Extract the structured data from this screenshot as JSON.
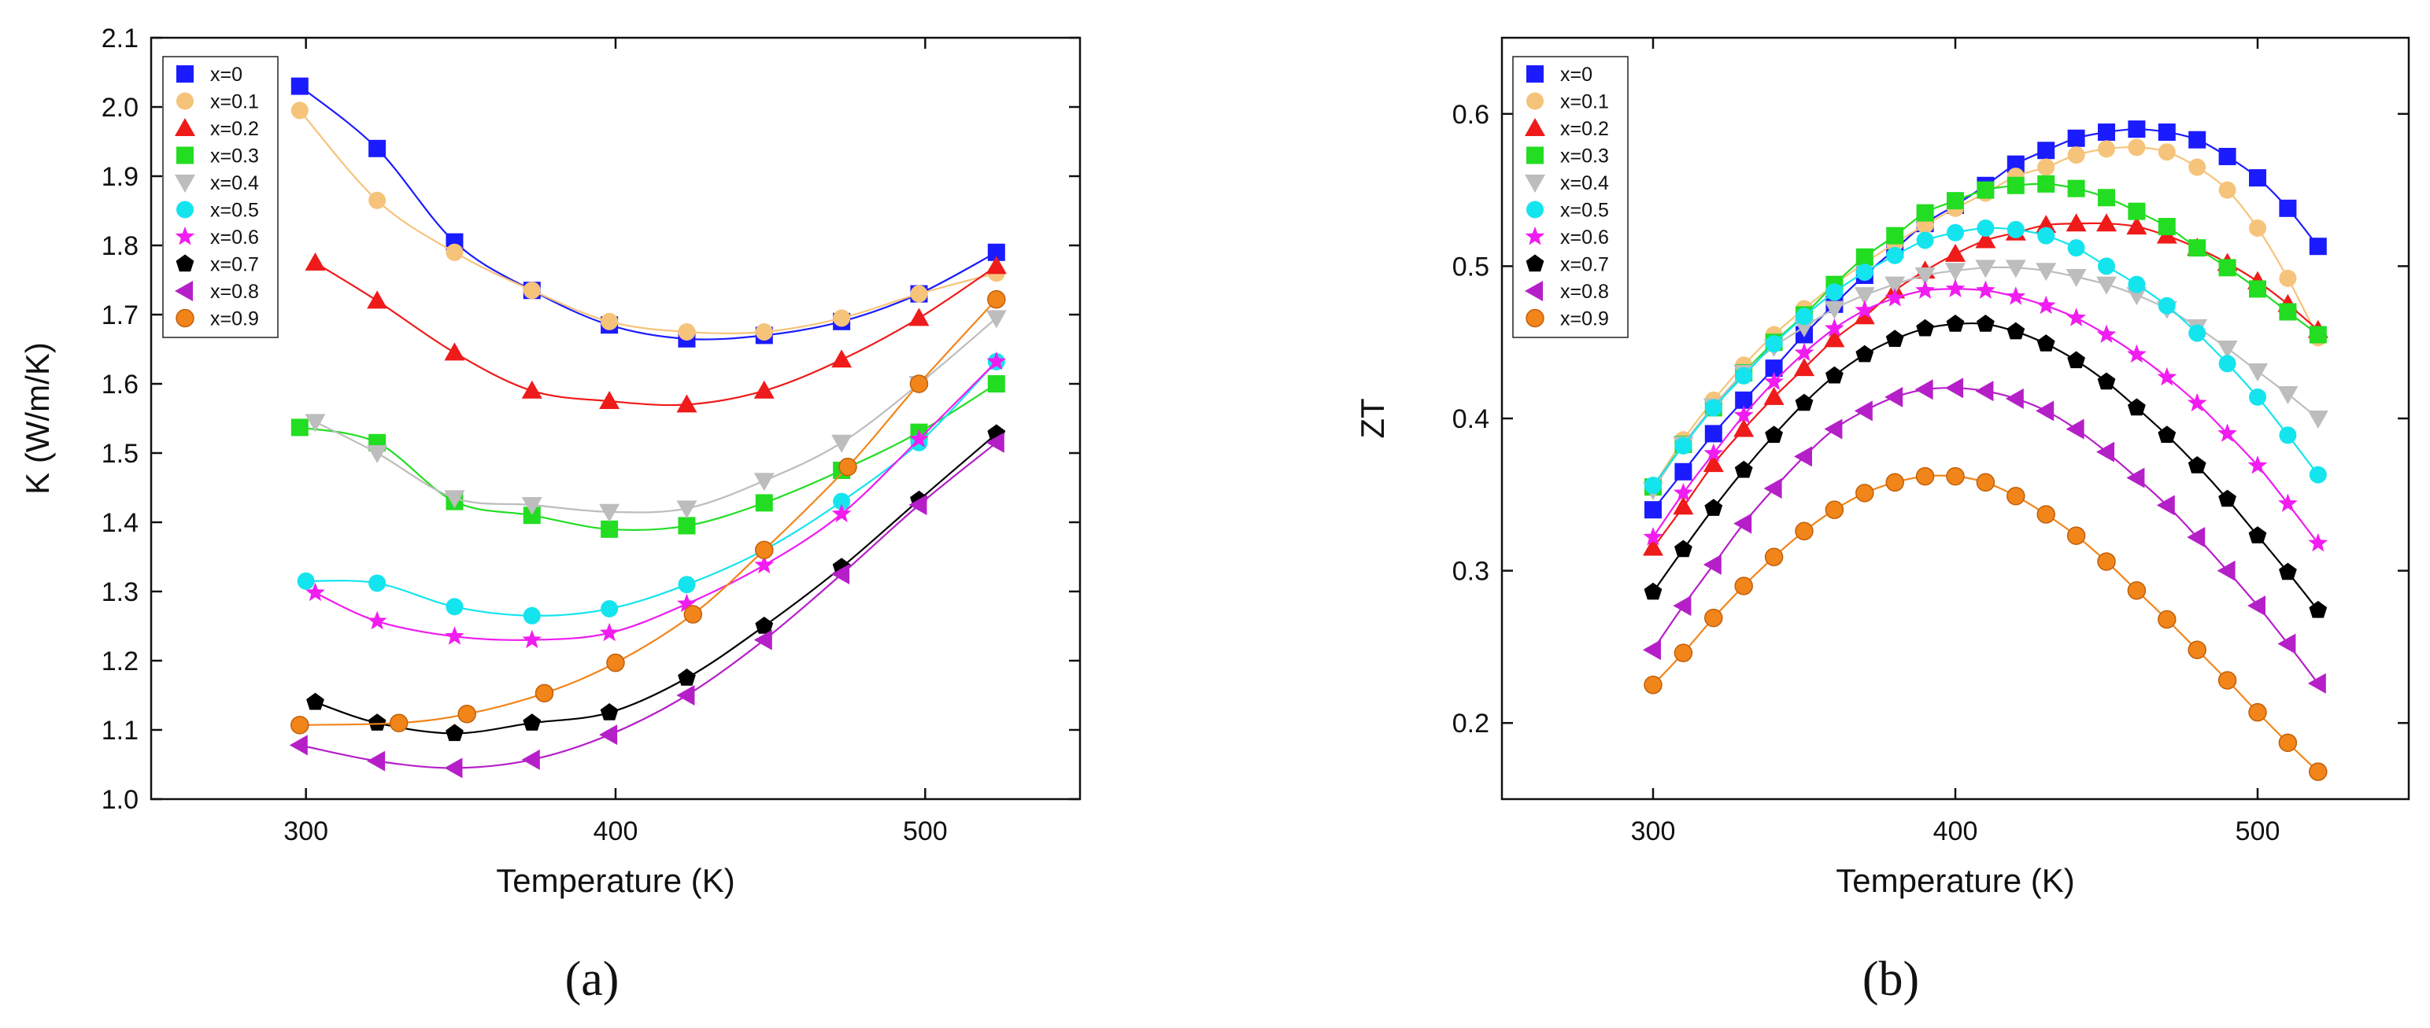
{
  "chart_data": [
    {
      "type": "scatter-line",
      "panel": "a",
      "caption": "(a)",
      "xlabel": "Temperature (K)",
      "ylabel": "K (W/m/K)",
      "xlim": [
        250,
        550
      ],
      "ylim": [
        1.0,
        2.1
      ],
      "xticks": [
        300,
        400,
        500
      ],
      "xtick_labels": [
        "300",
        "400",
        "500"
      ],
      "yticks": [
        1.0,
        1.1,
        1.2,
        1.3,
        1.4,
        1.5,
        1.6,
        1.7,
        1.8,
        1.9,
        2.0,
        2.1
      ],
      "ytick_labels": [
        "1.0",
        "1.1",
        "1.2",
        "1.3",
        "1.4",
        "1.5",
        "1.6",
        "1.7",
        "1.8",
        "1.9",
        "2.0",
        "2.1"
      ],
      "legend_position": "top-left",
      "series": [
        {
          "name": "x=0",
          "color": "#1b1bff",
          "marker": "square",
          "x": [
            298,
            323,
            348,
            373,
            398,
            423,
            448,
            473,
            498,
            523
          ],
          "y": [
            2.03,
            1.94,
            1.805,
            1.735,
            1.685,
            1.665,
            1.67,
            1.69,
            1.73,
            1.79
          ]
        },
        {
          "name": "x=0.1",
          "color": "#f6c37a",
          "marker": "circle",
          "x": [
            298,
            323,
            348,
            373,
            398,
            423,
            448,
            473,
            498,
            523
          ],
          "y": [
            1.995,
            1.865,
            1.79,
            1.735,
            1.69,
            1.675,
            1.675,
            1.695,
            1.73,
            1.76
          ]
        },
        {
          "name": "x=0.2",
          "color": "#ef1a1a",
          "marker": "triangle-up",
          "x": [
            303,
            323,
            348,
            373,
            398,
            423,
            448,
            473,
            498,
            523
          ],
          "y": [
            1.775,
            1.72,
            1.645,
            1.59,
            1.575,
            1.57,
            1.59,
            1.635,
            1.695,
            1.77
          ]
        },
        {
          "name": "x=0.3",
          "color": "#22dd22",
          "marker": "square",
          "x": [
            298,
            323,
            348,
            373,
            398,
            423,
            448,
            473,
            498,
            523
          ],
          "y": [
            1.537,
            1.515,
            1.43,
            1.41,
            1.39,
            1.395,
            1.428,
            1.475,
            1.53,
            1.6
          ]
        },
        {
          "name": "x=0.4",
          "color": "#bdbdbd",
          "marker": "triangle-down",
          "x": [
            303,
            323,
            348,
            373,
            398,
            423,
            448,
            473,
            498,
            523
          ],
          "y": [
            1.545,
            1.5,
            1.435,
            1.425,
            1.415,
            1.42,
            1.46,
            1.515,
            1.6,
            1.695
          ]
        },
        {
          "name": "x=0.5",
          "color": "#14e4ee",
          "marker": "circle",
          "x": [
            300,
            323,
            348,
            373,
            398,
            423,
            448,
            473,
            498,
            523
          ],
          "y": [
            1.315,
            1.312,
            1.278,
            1.265,
            1.275,
            1.31,
            1.36,
            1.43,
            1.515,
            1.632
          ]
        },
        {
          "name": "x=0.6",
          "color": "#f01cf0",
          "marker": "star",
          "x": [
            303,
            323,
            348,
            373,
            398,
            423,
            448,
            473,
            498,
            523
          ],
          "y": [
            1.298,
            1.257,
            1.235,
            1.23,
            1.24,
            1.282,
            1.338,
            1.412,
            1.52,
            1.632
          ]
        },
        {
          "name": "x=0.7",
          "color": "#000000",
          "marker": "pentagon",
          "x": [
            303,
            323,
            348,
            373,
            398,
            423,
            448,
            473,
            498,
            523
          ],
          "y": [
            1.14,
            1.11,
            1.095,
            1.11,
            1.125,
            1.175,
            1.25,
            1.335,
            1.432,
            1.528
          ]
        },
        {
          "name": "x=0.8",
          "color": "#b51fc8",
          "marker": "triangle-left",
          "x": [
            298,
            323,
            348,
            373,
            398,
            423,
            448,
            473,
            498,
            523
          ],
          "y": [
            1.078,
            1.055,
            1.045,
            1.057,
            1.093,
            1.15,
            1.23,
            1.325,
            1.425,
            1.515
          ]
        },
        {
          "name": "x=0.9",
          "color": "#f2851a",
          "marker": "ball",
          "x": [
            298,
            330,
            352,
            377,
            400,
            425,
            448,
            475,
            498,
            523
          ],
          "y": [
            1.107,
            1.11,
            1.123,
            1.153,
            1.197,
            1.267,
            1.36,
            1.48,
            1.6,
            1.722
          ]
        }
      ]
    },
    {
      "type": "scatter-line",
      "panel": "b",
      "caption": "(b)",
      "xlabel": "Temperature (K)",
      "ylabel": "ZT",
      "xlim": [
        250,
        550
      ],
      "ylim": [
        0.15,
        0.65
      ],
      "xticks": [
        300,
        400,
        500
      ],
      "xtick_labels": [
        "300",
        "400",
        "500"
      ],
      "yticks": [
        0.2,
        0.3,
        0.4,
        0.5,
        0.6
      ],
      "ytick_labels": [
        "0.2",
        "0.3",
        "0.4",
        "0.5",
        "0.6"
      ],
      "legend_position": "top-left",
      "series": [
        {
          "name": "x=0",
          "color": "#1b1bff",
          "marker": "square",
          "x": [
            300,
            310,
            320,
            330,
            340,
            350,
            360,
            370,
            380,
            390,
            400,
            410,
            420,
            430,
            440,
            450,
            460,
            470,
            480,
            490,
            500,
            510,
            520
          ],
          "y": [
            0.34,
            0.365,
            0.39,
            0.412,
            0.433,
            0.455,
            0.475,
            0.494,
            0.511,
            0.528,
            0.54,
            0.553,
            0.567,
            0.576,
            0.584,
            0.588,
            0.59,
            0.588,
            0.583,
            0.572,
            0.558,
            0.538,
            0.513
          ]
        },
        {
          "name": "x=0.1",
          "color": "#f6c37a",
          "marker": "circle",
          "x": [
            300,
            310,
            320,
            330,
            340,
            350,
            360,
            370,
            380,
            390,
            400,
            410,
            420,
            430,
            440,
            450,
            460,
            470,
            480,
            490,
            500,
            510,
            520
          ],
          "y": [
            0.355,
            0.386,
            0.412,
            0.435,
            0.455,
            0.472,
            0.488,
            0.502,
            0.515,
            0.527,
            0.538,
            0.548,
            0.559,
            0.565,
            0.573,
            0.577,
            0.578,
            0.575,
            0.565,
            0.55,
            0.525,
            0.492,
            0.453
          ]
        },
        {
          "name": "x=0.2",
          "color": "#ef1a1a",
          "marker": "triangle-up",
          "x": [
            300,
            310,
            320,
            330,
            340,
            350,
            360,
            370,
            380,
            390,
            400,
            410,
            420,
            430,
            440,
            450,
            460,
            470,
            480,
            490,
            500,
            510,
            520
          ],
          "y": [
            0.315,
            0.342,
            0.37,
            0.393,
            0.414,
            0.433,
            0.452,
            0.467,
            0.484,
            0.497,
            0.508,
            0.517,
            0.522,
            0.527,
            0.528,
            0.528,
            0.526,
            0.52,
            0.512,
            0.502,
            0.49,
            0.475,
            0.458
          ]
        },
        {
          "name": "x=0.3",
          "color": "#22dd22",
          "marker": "square",
          "x": [
            300,
            310,
            320,
            330,
            340,
            350,
            360,
            370,
            380,
            390,
            400,
            410,
            420,
            430,
            440,
            450,
            460,
            470,
            480,
            490,
            500,
            510,
            520
          ],
          "y": [
            0.355,
            0.383,
            0.407,
            0.43,
            0.45,
            0.468,
            0.488,
            0.506,
            0.52,
            0.535,
            0.543,
            0.55,
            0.553,
            0.554,
            0.551,
            0.545,
            0.536,
            0.526,
            0.512,
            0.499,
            0.485,
            0.47,
            0.455
          ]
        },
        {
          "name": "x=0.4",
          "color": "#bdbdbd",
          "marker": "triangle-down",
          "x": [
            300,
            310,
            320,
            330,
            340,
            350,
            360,
            370,
            380,
            390,
            400,
            410,
            420,
            430,
            440,
            450,
            460,
            470,
            480,
            490,
            500,
            510,
            520
          ],
          "y": [
            0.353,
            0.383,
            0.408,
            0.43,
            0.447,
            0.46,
            0.472,
            0.481,
            0.488,
            0.494,
            0.497,
            0.499,
            0.499,
            0.497,
            0.493,
            0.488,
            0.481,
            0.472,
            0.46,
            0.446,
            0.431,
            0.416,
            0.4
          ]
        },
        {
          "name": "x=0.5",
          "color": "#14e4ee",
          "marker": "circle",
          "x": [
            300,
            310,
            320,
            330,
            340,
            350,
            360,
            370,
            380,
            390,
            400,
            410,
            420,
            430,
            440,
            450,
            460,
            470,
            480,
            490,
            500,
            510,
            520
          ],
          "y": [
            0.356,
            0.382,
            0.407,
            0.428,
            0.449,
            0.467,
            0.483,
            0.496,
            0.507,
            0.517,
            0.522,
            0.525,
            0.524,
            0.52,
            0.512,
            0.5,
            0.488,
            0.474,
            0.456,
            0.436,
            0.414,
            0.389,
            0.363
          ]
        },
        {
          "name": "x=0.6",
          "color": "#f01cf0",
          "marker": "star",
          "x": [
            300,
            310,
            320,
            330,
            340,
            350,
            360,
            370,
            380,
            390,
            400,
            410,
            420,
            430,
            440,
            450,
            460,
            470,
            480,
            490,
            500,
            510,
            520
          ],
          "y": [
            0.322,
            0.351,
            0.377,
            0.402,
            0.424,
            0.443,
            0.459,
            0.471,
            0.479,
            0.484,
            0.485,
            0.484,
            0.48,
            0.474,
            0.466,
            0.455,
            0.442,
            0.427,
            0.41,
            0.39,
            0.369,
            0.344,
            0.318
          ]
        },
        {
          "name": "x=0.7",
          "color": "#000000",
          "marker": "pentagon",
          "x": [
            300,
            310,
            320,
            330,
            340,
            350,
            360,
            370,
            380,
            390,
            400,
            410,
            420,
            430,
            440,
            450,
            460,
            470,
            480,
            490,
            500,
            510,
            520
          ],
          "y": [
            0.286,
            0.314,
            0.341,
            0.366,
            0.389,
            0.41,
            0.428,
            0.442,
            0.452,
            0.459,
            0.462,
            0.462,
            0.457,
            0.449,
            0.438,
            0.424,
            0.407,
            0.389,
            0.369,
            0.347,
            0.323,
            0.299,
            0.274
          ]
        },
        {
          "name": "x=0.8",
          "color": "#b51fc8",
          "marker": "triangle-left",
          "x": [
            300,
            310,
            320,
            330,
            340,
            350,
            360,
            370,
            380,
            390,
            400,
            410,
            420,
            430,
            440,
            450,
            460,
            470,
            480,
            490,
            500,
            510,
            520
          ],
          "y": [
            0.248,
            0.277,
            0.304,
            0.331,
            0.354,
            0.375,
            0.393,
            0.405,
            0.414,
            0.419,
            0.42,
            0.418,
            0.413,
            0.405,
            0.393,
            0.378,
            0.361,
            0.343,
            0.322,
            0.3,
            0.277,
            0.252,
            0.226
          ]
        },
        {
          "name": "x=0.9",
          "color": "#f2851a",
          "marker": "ball",
          "x": [
            300,
            310,
            320,
            330,
            340,
            350,
            360,
            370,
            380,
            390,
            400,
            410,
            420,
            430,
            440,
            450,
            460,
            470,
            480,
            490,
            500,
            510,
            520
          ],
          "y": [
            0.225,
            0.246,
            0.269,
            0.29,
            0.309,
            0.326,
            0.34,
            0.351,
            0.358,
            0.362,
            0.362,
            0.358,
            0.349,
            0.337,
            0.323,
            0.306,
            0.287,
            0.268,
            0.248,
            0.228,
            0.207,
            0.187,
            0.168
          ]
        }
      ]
    }
  ]
}
